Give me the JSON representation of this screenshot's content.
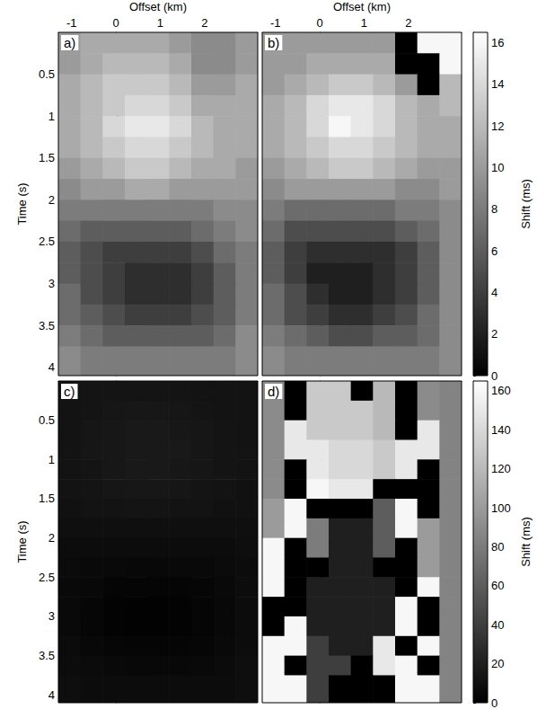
{
  "chart_data": [
    {
      "type": "heatmap",
      "title": "a)",
      "xlabel": "Offset (km)",
      "ylabel": "Time (s)",
      "x": [
        -1.05,
        -0.55,
        -0.05,
        0.45,
        0.95,
        1.45,
        1.95,
        2.45,
        2.95
      ],
      "y": [
        0.125,
        0.375,
        0.625,
        0.875,
        1.125,
        1.375,
        1.625,
        1.875,
        2.125,
        2.375,
        2.625,
        2.875,
        3.125,
        3.375,
        3.625,
        3.875
      ],
      "values": [
        [
          10,
          11,
          11,
          11,
          11,
          10,
          9,
          9,
          10
        ],
        [
          10,
          11,
          12,
          12,
          12,
          11,
          9,
          9,
          10
        ],
        [
          11,
          12,
          13,
          13,
          13,
          12,
          10,
          10,
          11
        ],
        [
          11,
          12,
          13,
          14,
          14,
          13,
          11,
          11,
          11
        ],
        [
          11,
          12,
          14,
          15,
          15,
          14,
          12,
          11,
          11
        ],
        [
          11,
          12,
          13,
          14,
          14,
          13,
          12,
          11,
          11
        ],
        [
          10,
          11,
          12,
          13,
          13,
          12,
          11,
          11,
          10
        ],
        [
          9,
          10,
          10,
          11,
          11,
          10,
          10,
          10,
          10
        ],
        [
          8,
          8,
          8,
          8,
          8,
          8,
          8,
          9,
          9
        ],
        [
          7,
          6,
          6,
          6,
          6,
          6,
          7,
          8,
          9
        ],
        [
          6,
          5,
          4,
          4,
          4,
          4,
          5,
          7,
          8
        ],
        [
          6,
          5,
          4,
          3,
          3,
          3,
          4,
          6,
          8
        ],
        [
          7,
          5,
          4,
          3,
          3,
          3,
          4,
          6,
          8
        ],
        [
          7,
          6,
          5,
          4,
          4,
          4,
          5,
          6,
          8
        ],
        [
          8,
          7,
          6,
          6,
          6,
          6,
          6,
          7,
          9
        ],
        [
          9,
          8,
          8,
          8,
          8,
          8,
          8,
          8,
          9
        ]
      ],
      "xlim": [
        -1.3,
        3.2
      ],
      "ylim": [
        0,
        4.1
      ],
      "xticks": [
        -1,
        0,
        1,
        2
      ],
      "yticks": [
        0.5,
        1,
        1.5,
        2,
        2.5,
        3,
        3.5,
        4
      ]
    },
    {
      "type": "heatmap",
      "title": "b)",
      "xlabel": "Offset (km)",
      "tick_labels": "x",
      "x": [
        -1.05,
        -0.55,
        -0.05,
        0.45,
        0.95,
        1.45,
        1.95,
        2.45,
        2.95
      ],
      "y": [
        0.125,
        0.375,
        0.625,
        0.875,
        1.125,
        1.375,
        1.625,
        1.875,
        2.125,
        2.375,
        2.625,
        2.875,
        3.125,
        3.375,
        3.625,
        3.875
      ],
      "values": [
        [
          10,
          10,
          10,
          10,
          10,
          10,
          0,
          16,
          16
        ],
        [
          10,
          10,
          11,
          11,
          11,
          11,
          0,
          0,
          16
        ],
        [
          10,
          11,
          12,
          13,
          13,
          12,
          10,
          0,
          12
        ],
        [
          11,
          12,
          14,
          15,
          15,
          14,
          12,
          11,
          12
        ],
        [
          11,
          12,
          14,
          16,
          15,
          14,
          12,
          11,
          11
        ],
        [
          11,
          12,
          13,
          14,
          14,
          13,
          12,
          11,
          11
        ],
        [
          10,
          11,
          12,
          13,
          13,
          12,
          11,
          10,
          10
        ],
        [
          9,
          10,
          10,
          10,
          10,
          10,
          9,
          9,
          10
        ],
        [
          8,
          7,
          7,
          7,
          7,
          7,
          8,
          8,
          9
        ],
        [
          7,
          5,
          5,
          5,
          5,
          5,
          6,
          7,
          9
        ],
        [
          6,
          4,
          3,
          3,
          3,
          3,
          4,
          6,
          9
        ],
        [
          6,
          4,
          2,
          2,
          2,
          3,
          4,
          6,
          9
        ],
        [
          7,
          5,
          3,
          2,
          2,
          3,
          4,
          6,
          9
        ],
        [
          7,
          5,
          4,
          3,
          3,
          4,
          5,
          7,
          9
        ],
        [
          8,
          7,
          6,
          5,
          5,
          6,
          6,
          7,
          9
        ],
        [
          9,
          8,
          8,
          8,
          8,
          8,
          8,
          8,
          9
        ]
      ],
      "xlim": [
        -1.3,
        3.2
      ],
      "ylim": [
        0,
        4.1
      ],
      "xticks": [
        -1,
        0,
        1,
        2
      ],
      "yticks": [
        0.5,
        1,
        1.5,
        2,
        2.5,
        3,
        3.5,
        4
      ],
      "colorbar": {
        "range": [
          0,
          16.5
        ],
        "ticks": [
          0,
          2,
          4,
          6,
          8,
          10,
          12,
          14,
          16
        ],
        "label": "Shift (ms)"
      }
    },
    {
      "type": "heatmap",
      "title": "c)",
      "ylabel": "Time (s)",
      "tick_labels": "y",
      "x": [
        -1.05,
        -0.55,
        -0.05,
        0.45,
        0.95,
        1.45,
        1.95,
        2.45,
        2.95
      ],
      "y": [
        0.125,
        0.375,
        0.625,
        0.875,
        1.125,
        1.375,
        1.625,
        1.875,
        2.125,
        2.375,
        2.625,
        2.875,
        3.125,
        3.375,
        3.625,
        3.875
      ],
      "values": [
        [
          12,
          13,
          13,
          13,
          13,
          13,
          12,
          12,
          12
        ],
        [
          12,
          13,
          14,
          15,
          15,
          14,
          13,
          12,
          12
        ],
        [
          12,
          14,
          15,
          16,
          16,
          15,
          14,
          13,
          12
        ],
        [
          12,
          14,
          15,
          16,
          16,
          16,
          14,
          13,
          12
        ],
        [
          12,
          13,
          15,
          16,
          16,
          15,
          14,
          13,
          12
        ],
        [
          12,
          13,
          14,
          15,
          15,
          14,
          13,
          12,
          11
        ],
        [
          11,
          12,
          12,
          13,
          13,
          12,
          12,
          11,
          11
        ],
        [
          10,
          10,
          10,
          10,
          10,
          10,
          10,
          10,
          10
        ],
        [
          8,
          8,
          8,
          8,
          8,
          8,
          8,
          8,
          9
        ],
        [
          7,
          6,
          6,
          5,
          5,
          6,
          6,
          7,
          8
        ],
        [
          6,
          5,
          3,
          3,
          3,
          3,
          4,
          6,
          8
        ],
        [
          6,
          4,
          2,
          1,
          1,
          2,
          3,
          5,
          8
        ],
        [
          6,
          4,
          2,
          1,
          1,
          2,
          3,
          5,
          8
        ],
        [
          7,
          5,
          4,
          3,
          3,
          3,
          4,
          6,
          8
        ],
        [
          8,
          7,
          6,
          5,
          5,
          5,
          6,
          7,
          9
        ],
        [
          9,
          8,
          8,
          8,
          8,
          8,
          8,
          8,
          9
        ]
      ],
      "xlim": [
        -1.3,
        3.2
      ],
      "ylim": [
        0,
        4.1
      ],
      "xticks": [
        -1,
        0,
        1,
        2
      ],
      "yticks": [
        0.5,
        1,
        1.5,
        2,
        2.5,
        3,
        3.5,
        4
      ]
    },
    {
      "type": "heatmap",
      "title": "d)",
      "tick_labels": false,
      "x": [
        -1.05,
        -0.55,
        -0.05,
        0.45,
        0.95,
        1.45,
        1.95,
        2.45,
        2.95
      ],
      "y": [
        0.125,
        0.375,
        0.625,
        0.875,
        1.125,
        1.375,
        1.625,
        1.875,
        2.125,
        2.375,
        2.625,
        2.875,
        3.125,
        3.375,
        3.625,
        3.875
      ],
      "values": [
        [
          90,
          0,
          130,
          130,
          0,
          120,
          0,
          90,
          85
        ],
        [
          90,
          0,
          130,
          130,
          130,
          120,
          0,
          90,
          85
        ],
        [
          90,
          150,
          130,
          130,
          130,
          120,
          0,
          150,
          85
        ],
        [
          90,
          150,
          150,
          140,
          140,
          130,
          150,
          150,
          85
        ],
        [
          90,
          0,
          150,
          140,
          140,
          130,
          150,
          0,
          85
        ],
        [
          90,
          0,
          160,
          150,
          150,
          0,
          0,
          0,
          85
        ],
        [
          100,
          160,
          0,
          0,
          0,
          60,
          160,
          0,
          85
        ],
        [
          100,
          160,
          80,
          20,
          20,
          60,
          160,
          100,
          85
        ],
        [
          160,
          0,
          80,
          20,
          20,
          60,
          0,
          100,
          85
        ],
        [
          160,
          0,
          0,
          20,
          20,
          0,
          0,
          100,
          85
        ],
        [
          160,
          0,
          20,
          20,
          20,
          20,
          0,
          160,
          85
        ],
        [
          0,
          0,
          20,
          20,
          20,
          20,
          160,
          0,
          85
        ],
        [
          0,
          160,
          20,
          20,
          20,
          20,
          160,
          0,
          85
        ],
        [
          160,
          160,
          40,
          20,
          20,
          150,
          0,
          160,
          85
        ],
        [
          160,
          0,
          40,
          40,
          0,
          150,
          160,
          0,
          85
        ],
        [
          160,
          160,
          40,
          0,
          0,
          0,
          160,
          160,
          85
        ]
      ],
      "xlim": [
        -1.3,
        3.2
      ],
      "ylim": [
        0,
        4.1
      ],
      "xticks": [
        -1,
        0,
        1,
        2
      ],
      "yticks": [
        0.5,
        1,
        1.5,
        2,
        2.5,
        3,
        3.5,
        4
      ],
      "colorbar": {
        "range": [
          0,
          165
        ],
        "ticks": [
          0,
          20,
          40,
          60,
          80,
          100,
          120,
          140,
          160
        ],
        "label": "Shift (ms)"
      }
    }
  ]
}
